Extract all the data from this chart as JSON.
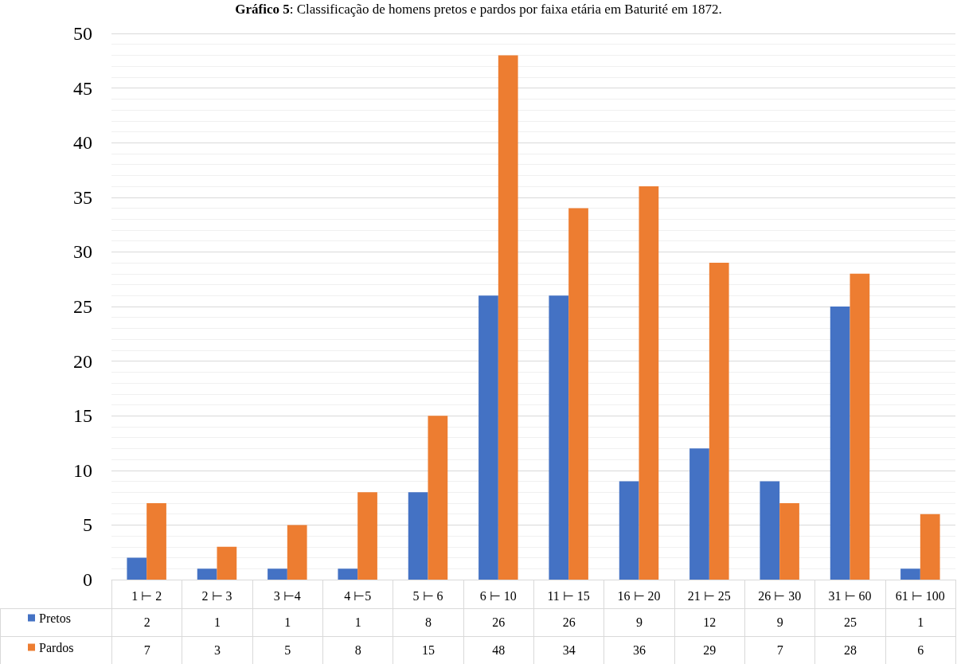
{
  "chart_data": {
    "type": "bar",
    "title": "Gráfico 5: Classificação de homens pretos e pardos por faixa etária em Baturité em 1872.",
    "categories": [
      "1 ⊢ 2",
      "2 ⊢ 3",
      "3 ⊢4",
      "4 ⊢5",
      "5 ⊢ 6",
      "6 ⊢ 10",
      "11 ⊢ 15",
      "16 ⊢ 20",
      "21 ⊢ 25",
      "26 ⊢ 30",
      "31 ⊢ 60",
      "61 ⊢ 100"
    ],
    "series": [
      {
        "name": "Pretos",
        "color": "#4472c4",
        "values": [
          2,
          1,
          1,
          1,
          8,
          26,
          26,
          9,
          12,
          9,
          25,
          1
        ]
      },
      {
        "name": "Pardos",
        "color": "#ed7d31",
        "values": [
          7,
          3,
          5,
          8,
          15,
          48,
          34,
          36,
          29,
          7,
          28,
          6
        ]
      }
    ],
    "ylim": [
      0,
      50
    ],
    "yticks": [
      0,
      5,
      10,
      15,
      20,
      25,
      30,
      35,
      40,
      45,
      50
    ],
    "grid": "y",
    "legend": "bottom left",
    "data_labels": true
  }
}
